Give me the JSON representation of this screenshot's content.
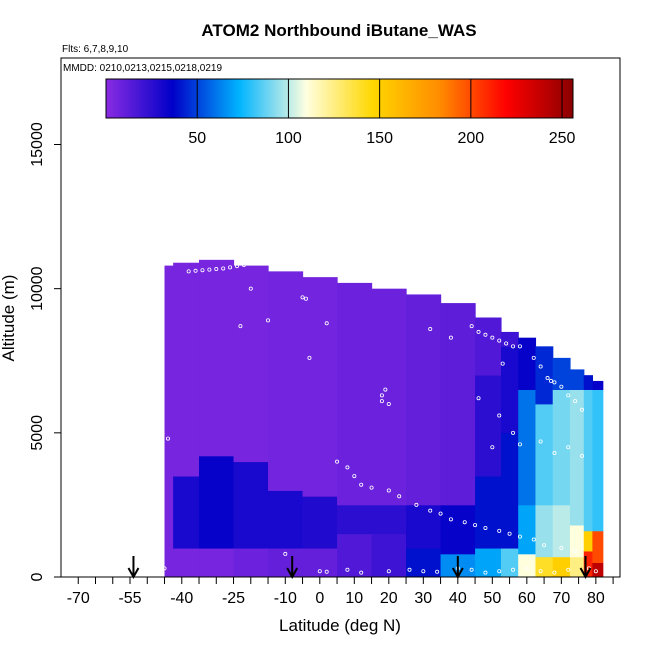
{
  "chart_data": {
    "type": "heatmap",
    "title": "ATOM2 Northbound iButane_WAS",
    "subtitle_flights": "Flts: 6,7,8,9,10",
    "subtitle_dates": "MMDD: 0210,0213,0215,0218,0219",
    "xlabel": "Latitude (deg N)",
    "ylabel": "Altitude (m)",
    "xlim": [
      -75,
      87
    ],
    "ylim": [
      0,
      18000
    ],
    "x_ticks": [
      -70,
      -55,
      -40,
      -25,
      -10,
      0,
      10,
      20,
      30,
      40,
      50,
      60,
      70,
      80
    ],
    "x_tick_labels": [
      "-70",
      "-55",
      "-40",
      "-25",
      "-10",
      "0",
      "10",
      "20",
      "30",
      "40",
      "50",
      "60",
      "70",
      "80"
    ],
    "x_minor_ticks": [
      -65,
      -60,
      -50,
      -45,
      -35,
      -30,
      -20,
      -15,
      -5,
      5,
      15,
      25,
      35,
      45,
      55,
      65,
      75,
      85
    ],
    "y_ticks": [
      0,
      5000,
      10000,
      15000
    ],
    "y_tick_labels": [
      "0",
      "5000",
      "10000",
      "15000"
    ],
    "colorbar": {
      "range": [
        0,
        256
      ],
      "ticks": [
        50,
        100,
        150,
        200,
        250
      ],
      "tick_labels": [
        "50",
        "100",
        "150",
        "200",
        "250"
      ],
      "colors": [
        "#8a2be2",
        "#0000c8",
        "#00b4ff",
        "#ffffe0",
        "#ffd700",
        "#ff8c00",
        "#ff0000",
        "#8b0000"
      ]
    },
    "grid": false,
    "markers": {
      "description": "flight location arrows on latitude axis",
      "latitudes": [
        -54,
        -8,
        40,
        77
      ]
    },
    "profiles": [
      {
        "lat": -45,
        "y_max": 10800,
        "bands": [
          [
            0,
            11000,
            5
          ]
        ]
      },
      {
        "lat": -40,
        "y_max": 10900,
        "bands": [
          [
            0,
            1000,
            5
          ],
          [
            1000,
            3500,
            30
          ],
          [
            3500,
            11000,
            5
          ]
        ]
      },
      {
        "lat": -30,
        "y_max": 11000,
        "bands": [
          [
            0,
            1000,
            5
          ],
          [
            1000,
            4200,
            35
          ],
          [
            4200,
            11000,
            5
          ]
        ]
      },
      {
        "lat": -20,
        "y_max": 10800,
        "bands": [
          [
            0,
            1000,
            8
          ],
          [
            1000,
            4000,
            30
          ],
          [
            4000,
            11000,
            5
          ]
        ]
      },
      {
        "lat": -10,
        "y_max": 10600,
        "bands": [
          [
            0,
            1000,
            10
          ],
          [
            1000,
            3000,
            30
          ],
          [
            3000,
            11000,
            6
          ]
        ]
      },
      {
        "lat": 0,
        "y_max": 10400,
        "bands": [
          [
            0,
            1000,
            10
          ],
          [
            1000,
            2800,
            28
          ],
          [
            2800,
            11000,
            6
          ]
        ]
      },
      {
        "lat": 10,
        "y_max": 10200,
        "bands": [
          [
            0,
            1500,
            15
          ],
          [
            1500,
            2500,
            25
          ],
          [
            2500,
            11000,
            8
          ]
        ]
      },
      {
        "lat": 20,
        "y_max": 10000,
        "bands": [
          [
            0,
            1500,
            20
          ],
          [
            1500,
            2500,
            25
          ],
          [
            2500,
            11000,
            8
          ]
        ]
      },
      {
        "lat": 30,
        "y_max": 9800,
        "bands": [
          [
            0,
            1000,
            40
          ],
          [
            1000,
            2500,
            30
          ],
          [
            2500,
            11000,
            10
          ]
        ]
      },
      {
        "lat": 40,
        "y_max": 9500,
        "bands": [
          [
            0,
            800,
            65
          ],
          [
            800,
            2500,
            35
          ],
          [
            2500,
            11000,
            12
          ]
        ]
      },
      {
        "lat": 50,
        "y_max": 9000,
        "bands": [
          [
            0,
            1000,
            70
          ],
          [
            1000,
            3500,
            40
          ],
          [
            3500,
            7000,
            25
          ],
          [
            7000,
            11000,
            15
          ]
        ]
      },
      {
        "lat": 55,
        "y_max": 8500,
        "bands": [
          [
            0,
            1000,
            85
          ],
          [
            1000,
            5000,
            40
          ],
          [
            5000,
            8000,
            30
          ],
          [
            8000,
            11000,
            20
          ]
        ]
      },
      {
        "lat": 60,
        "y_max": 8300,
        "bands": [
          [
            0,
            800,
            110
          ],
          [
            800,
            2500,
            70
          ],
          [
            2500,
            6500,
            60
          ],
          [
            6500,
            11000,
            35
          ]
        ]
      },
      {
        "lat": 65,
        "y_max": 8000,
        "bands": [
          [
            0,
            700,
            140
          ],
          [
            700,
            2500,
            95
          ],
          [
            2500,
            6000,
            85
          ],
          [
            6000,
            11000,
            45
          ]
        ]
      },
      {
        "lat": 70,
        "y_max": 7600,
        "bands": [
          [
            0,
            700,
            150
          ],
          [
            700,
            2500,
            100
          ],
          [
            2500,
            6500,
            90
          ],
          [
            6500,
            11000,
            50
          ]
        ]
      },
      {
        "lat": 75,
        "y_max": 7200,
        "bands": [
          [
            0,
            700,
            125
          ],
          [
            700,
            1800,
            110
          ],
          [
            1800,
            6500,
            95
          ],
          [
            6500,
            11000,
            50
          ]
        ]
      },
      {
        "lat": 78,
        "y_max": 7000,
        "bands": [
          [
            0,
            900,
            210
          ],
          [
            900,
            1600,
            150
          ],
          [
            1600,
            6500,
            85
          ],
          [
            6500,
            11000,
            40
          ]
        ]
      },
      {
        "lat": 80,
        "y_max": 6800,
        "bands": [
          [
            0,
            500,
            240
          ],
          [
            500,
            1600,
            200
          ],
          [
            1600,
            6500,
            80
          ],
          [
            6500,
            11000,
            35
          ]
        ]
      }
    ],
    "samples": [
      {
        "lat": -44,
        "alt": 4800
      },
      {
        "lat": -46,
        "alt": 600
      },
      {
        "lat": -45,
        "alt": 300
      },
      {
        "lat": -38,
        "alt": 10600
      },
      {
        "lat": -36,
        "alt": 10620
      },
      {
        "lat": -34,
        "alt": 10640
      },
      {
        "lat": -32,
        "alt": 10660
      },
      {
        "lat": -30,
        "alt": 10680
      },
      {
        "lat": -28,
        "alt": 10700
      },
      {
        "lat": -26,
        "alt": 10740
      },
      {
        "lat": -24,
        "alt": 10780
      },
      {
        "lat": -22,
        "alt": 10820
      },
      {
        "lat": -20,
        "alt": 10880
      },
      {
        "lat": -18,
        "alt": 11300
      },
      {
        "lat": -20,
        "alt": 10000
      },
      {
        "lat": -23,
        "alt": 8700
      },
      {
        "lat": -15,
        "alt": 8900
      },
      {
        "lat": -5,
        "alt": 9700
      },
      {
        "lat": -4,
        "alt": 9650
      },
      {
        "lat": -3,
        "alt": 7600
      },
      {
        "lat": 2,
        "alt": 8800
      },
      {
        "lat": 18,
        "alt": 6300
      },
      {
        "lat": 18,
        "alt": 6100
      },
      {
        "lat": 19,
        "alt": 6500
      },
      {
        "lat": 20,
        "alt": 6000
      },
      {
        "lat": 32,
        "alt": 8600
      },
      {
        "lat": 38,
        "alt": 8300
      },
      {
        "lat": 44,
        "alt": 8700
      },
      {
        "lat": 46,
        "alt": 8500
      },
      {
        "lat": 48,
        "alt": 8400
      },
      {
        "lat": 50,
        "alt": 8300
      },
      {
        "lat": 52,
        "alt": 8200
      },
      {
        "lat": 54,
        "alt": 8100
      },
      {
        "lat": 56,
        "alt": 8000
      },
      {
        "lat": 58,
        "alt": 8000
      },
      {
        "lat": 53,
        "alt": 7400
      },
      {
        "lat": 62,
        "alt": 7600
      },
      {
        "lat": 64,
        "alt": 7300
      },
      {
        "lat": 66,
        "alt": 6900
      },
      {
        "lat": 67,
        "alt": 6800
      },
      {
        "lat": 68,
        "alt": 6750
      },
      {
        "lat": 70,
        "alt": 6600
      },
      {
        "lat": 72,
        "alt": 6300
      },
      {
        "lat": 74,
        "alt": 6100
      },
      {
        "lat": 76,
        "alt": 5800
      },
      {
        "lat": 46,
        "alt": 6200
      },
      {
        "lat": 52,
        "alt": 5600
      },
      {
        "lat": 56,
        "alt": 5000
      },
      {
        "lat": 50,
        "alt": 4500
      },
      {
        "lat": 58,
        "alt": 4600
      },
      {
        "lat": 64,
        "alt": 4700
      },
      {
        "lat": 68,
        "alt": 4300
      },
      {
        "lat": 72,
        "alt": 4500
      },
      {
        "lat": 76,
        "alt": 4200
      },
      {
        "lat": 5,
        "alt": 4000
      },
      {
        "lat": 8,
        "alt": 3800
      },
      {
        "lat": 10,
        "alt": 3500
      },
      {
        "lat": 12,
        "alt": 3200
      },
      {
        "lat": 15,
        "alt": 3100
      },
      {
        "lat": 20,
        "alt": 3000
      },
      {
        "lat": 23,
        "alt": 2800
      },
      {
        "lat": 28,
        "alt": 2500
      },
      {
        "lat": 32,
        "alt": 2300
      },
      {
        "lat": 35,
        "alt": 2200
      },
      {
        "lat": 38,
        "alt": 2000
      },
      {
        "lat": 42,
        "alt": 1900
      },
      {
        "lat": 45,
        "alt": 1800
      },
      {
        "lat": 48,
        "alt": 1700
      },
      {
        "lat": 52,
        "alt": 1600
      },
      {
        "lat": 55,
        "alt": 1500
      },
      {
        "lat": 58,
        "alt": 1400
      },
      {
        "lat": 62,
        "alt": 1300
      },
      {
        "lat": 65,
        "alt": 1100
      },
      {
        "lat": 70,
        "alt": 1000
      },
      {
        "lat": 74,
        "alt": 900
      },
      {
        "lat": -10,
        "alt": 800
      },
      {
        "lat": 0,
        "alt": 200
      },
      {
        "lat": 2,
        "alt": 180
      },
      {
        "lat": 8,
        "alt": 250
      },
      {
        "lat": 12,
        "alt": 150
      },
      {
        "lat": 20,
        "alt": 200
      },
      {
        "lat": 26,
        "alt": 250
      },
      {
        "lat": 30,
        "alt": 200
      },
      {
        "lat": 34,
        "alt": 180
      },
      {
        "lat": 40,
        "alt": 300
      },
      {
        "lat": 44,
        "alt": 250
      },
      {
        "lat": 48,
        "alt": 150
      },
      {
        "lat": 52,
        "alt": 200
      },
      {
        "lat": 56,
        "alt": 250
      },
      {
        "lat": 60,
        "alt": 300
      },
      {
        "lat": 64,
        "alt": 200
      },
      {
        "lat": 68,
        "alt": 150
      },
      {
        "lat": 72,
        "alt": 250
      },
      {
        "lat": 78,
        "alt": 300
      },
      {
        "lat": 80,
        "alt": 200
      }
    ]
  }
}
